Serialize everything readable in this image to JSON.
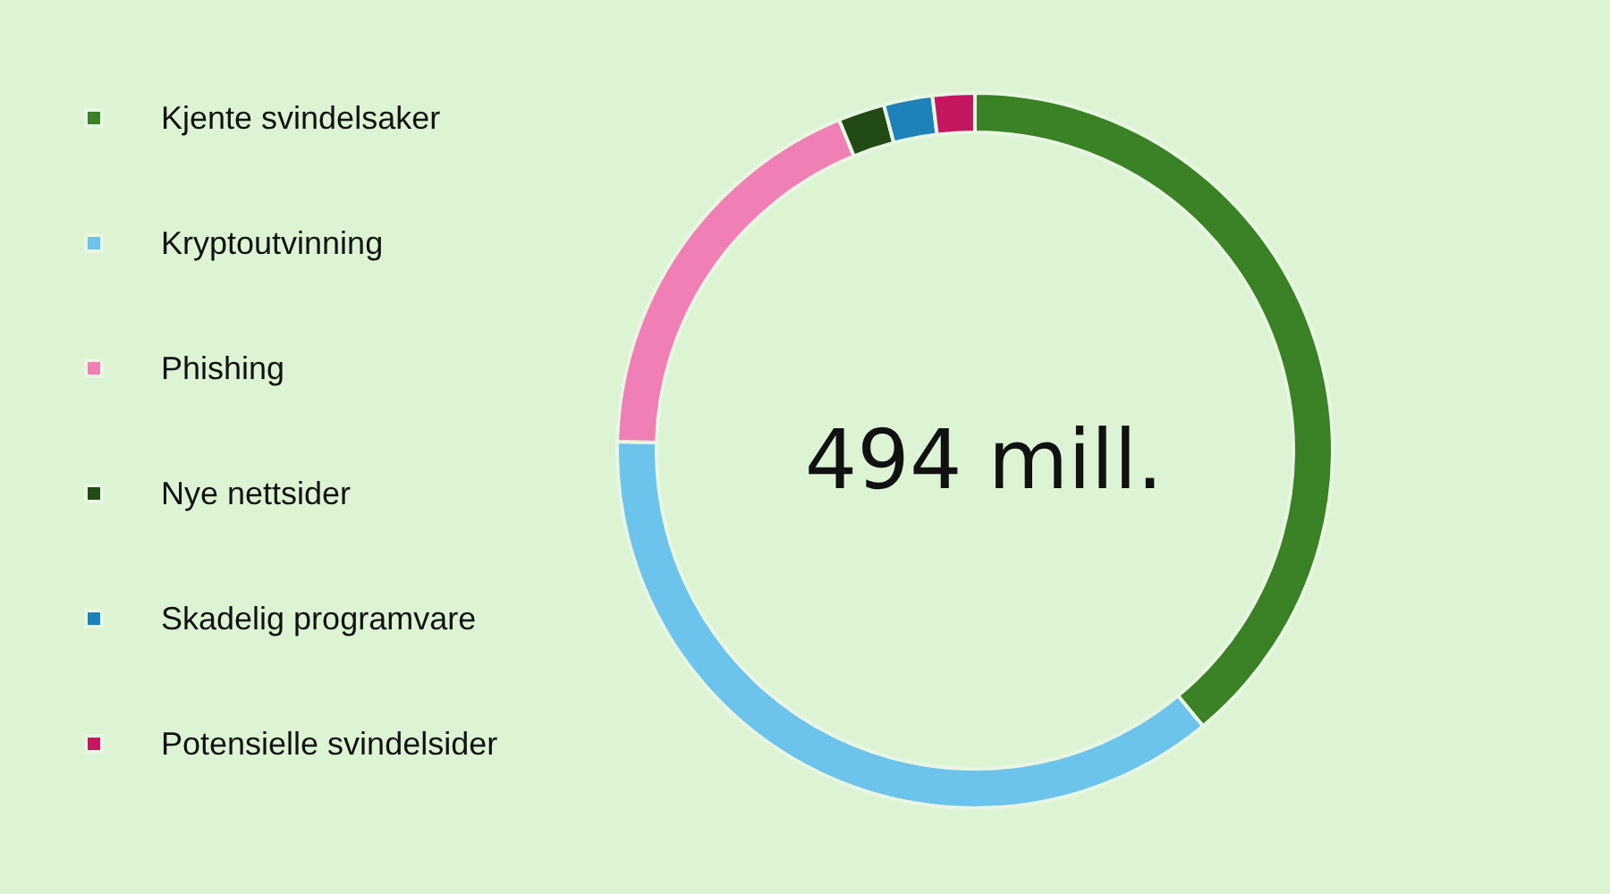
{
  "chart_data": {
    "type": "donut",
    "title": "494 mill.",
    "categories": [
      "Kjente svindelsaker",
      "Kryptoutvinning",
      "Phishing",
      "Nye nettsider",
      "Skadelig programvare",
      "Potensielle svindelsider"
    ],
    "values": [
      39,
      36.4,
      18.4,
      2.1,
      2.2,
      1.9
    ],
    "colors": [
      "#3b8125",
      "#6cc3ec",
      "#f07fb5",
      "#224a14",
      "#1c82b9",
      "#c4175f"
    ],
    "legend": "left"
  }
}
